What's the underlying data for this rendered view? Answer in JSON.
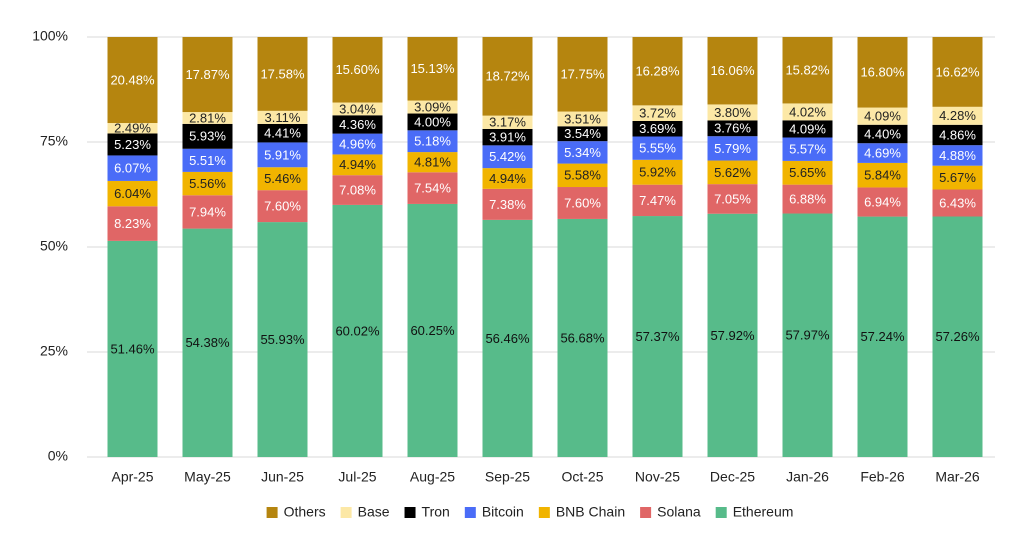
{
  "chart_data": {
    "type": "stacked_bar_100",
    "categories": [
      "Apr-25",
      "May-25",
      "Jun-25",
      "Jul-25",
      "Aug-25",
      "Sep-25",
      "Oct-25",
      "Nov-25",
      "Dec-25",
      "Jan-26",
      "Feb-26",
      "Mar-26"
    ],
    "ylim": [
      0,
      100
    ],
    "yticks": [
      {
        "value": 0,
        "label": "0%"
      },
      {
        "value": 25,
        "label": "25%"
      },
      {
        "value": 50,
        "label": "50%"
      },
      {
        "value": 75,
        "label": "75%"
      },
      {
        "value": 100,
        "label": "100%"
      }
    ],
    "grid": true,
    "legend": "bottom",
    "series": [
      {
        "name": "Others",
        "color": "#b5850f",
        "values": [
          20.48,
          17.87,
          17.58,
          15.6,
          15.13,
          18.72,
          17.75,
          16.28,
          16.06,
          15.82,
          16.8,
          16.62
        ],
        "value_labels": [
          "20.48%",
          "17.87%",
          "17.58%",
          "15.60%",
          "15.13%",
          "18.72%",
          "17.75%",
          "16.28%",
          "16.06%",
          "15.82%",
          "16.80%",
          "16.62%"
        ]
      },
      {
        "name": "Base",
        "color": "#fce8a6",
        "values": [
          2.49,
          2.81,
          3.11,
          3.04,
          3.09,
          3.17,
          3.51,
          3.72,
          3.8,
          4.02,
          4.09,
          4.28
        ],
        "value_labels": [
          "2.49%",
          "2.81%",
          "3.11%",
          "3.04%",
          "3.09%",
          "3.17%",
          "3.51%",
          "3.72%",
          "3.80%",
          "4.02%",
          "4.09%",
          "4.28%"
        ]
      },
      {
        "name": "Tron",
        "color": "#000000",
        "values": [
          5.23,
          5.93,
          4.41,
          4.36,
          4.0,
          3.91,
          3.54,
          3.69,
          3.76,
          4.09,
          4.4,
          4.86
        ],
        "value_labels": [
          "5.23%",
          "5.93%",
          "4.41%",
          "4.36%",
          "4.00%",
          "3.91%",
          "3.54%",
          "3.69%",
          "3.76%",
          "4.09%",
          "4.40%",
          "4.86%"
        ]
      },
      {
        "name": "Bitcoin",
        "color": "#4a6cf7",
        "values": [
          6.07,
          5.51,
          5.91,
          4.96,
          5.18,
          5.42,
          5.34,
          5.55,
          5.79,
          5.57,
          4.69,
          4.88
        ],
        "value_labels": [
          "6.07%",
          "5.51%",
          "5.91%",
          "4.96%",
          "5.18%",
          "5.42%",
          "5.34%",
          "5.55%",
          "5.79%",
          "5.57%",
          "4.69%",
          "4.88%"
        ]
      },
      {
        "name": "BNB Chain",
        "color": "#f1b400",
        "values": [
          6.04,
          5.56,
          5.46,
          4.94,
          4.81,
          4.94,
          5.58,
          5.92,
          5.62,
          5.65,
          5.84,
          5.67
        ],
        "value_labels": [
          "6.04%",
          "5.56%",
          "5.46%",
          "4.94%",
          "4.81%",
          "4.94%",
          "5.58%",
          "5.92%",
          "5.62%",
          "5.65%",
          "5.84%",
          "5.67%"
        ]
      },
      {
        "name": "Solana",
        "color": "#e06666",
        "values": [
          8.23,
          7.94,
          7.6,
          7.08,
          7.54,
          7.38,
          7.6,
          7.47,
          7.05,
          6.88,
          6.94,
          6.43
        ],
        "value_labels": [
          "8.23%",
          "7.94%",
          "7.60%",
          "7.08%",
          "7.54%",
          "7.38%",
          "7.60%",
          "7.47%",
          "7.05%",
          "6.88%",
          "6.94%",
          "6.43%"
        ]
      },
      {
        "name": "Ethereum",
        "color": "#57bb8a",
        "values": [
          51.46,
          54.38,
          55.93,
          60.02,
          60.25,
          56.46,
          56.68,
          57.37,
          57.92,
          57.97,
          57.24,
          57.26
        ],
        "value_labels": [
          "51.46%",
          "54.38%",
          "55.93%",
          "60.02%",
          "60.25%",
          "56.46%",
          "56.68%",
          "57.37%",
          "57.92%",
          "57.97%",
          "57.24%",
          "57.26%"
        ]
      }
    ]
  }
}
